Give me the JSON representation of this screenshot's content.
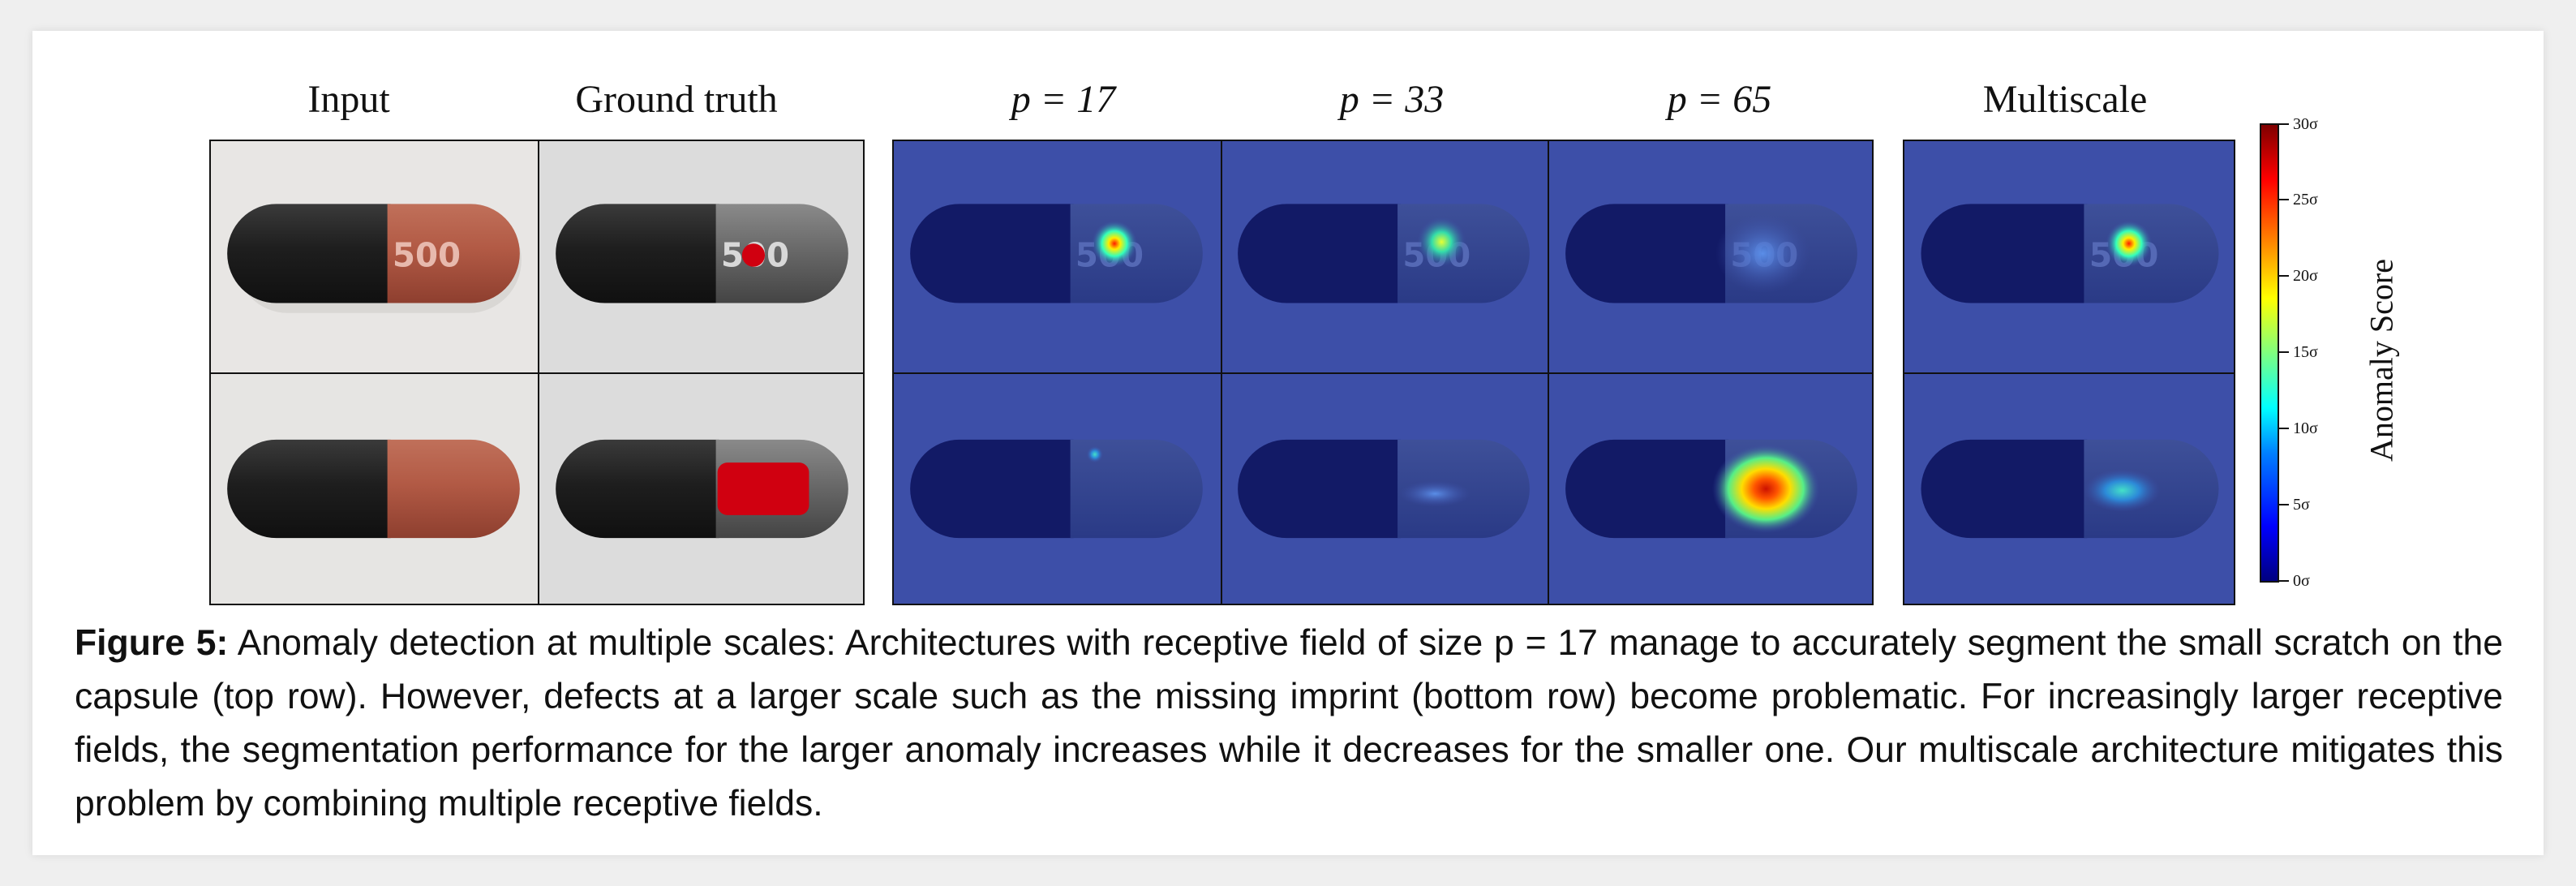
{
  "columns": {
    "input": "Input",
    "ground_truth": "Ground truth",
    "p17": "p = 17",
    "p33": "p = 33",
    "p65": "p = 65",
    "multiscale": "Multiscale"
  },
  "capsule_imprint": "500",
  "colorbar": {
    "label": "Anomaly Score",
    "ticks": [
      "30σ",
      "25σ",
      "20σ",
      "15σ",
      "10σ",
      "5σ",
      "0σ"
    ],
    "colors": [
      "#7f0000",
      "#ff0000",
      "#ffff00",
      "#00ffff",
      "#0000ff",
      "#00007f"
    ]
  },
  "caption": {
    "label": "Figure 5:",
    "text": " Anomaly detection at multiple scales: Architectures with receptive field of size p = 17 manage to accurately segment the small scratch on the capsule (top row). However, defects at a larger scale such as the missing imprint (bottom row) become problematic. For increasingly larger receptive fields, the segmentation performance for the larger anomaly increases while it decreases for the smaller one. Our multiscale architecture mitigates this problem by combining multiple receptive fields."
  },
  "colors": {
    "capsule_body_red": "#b25a45",
    "capsule_cap_black": "#1e1e1e",
    "ground_truth_defect": "#d00010",
    "heatmap_background": "#3d4fa8"
  }
}
